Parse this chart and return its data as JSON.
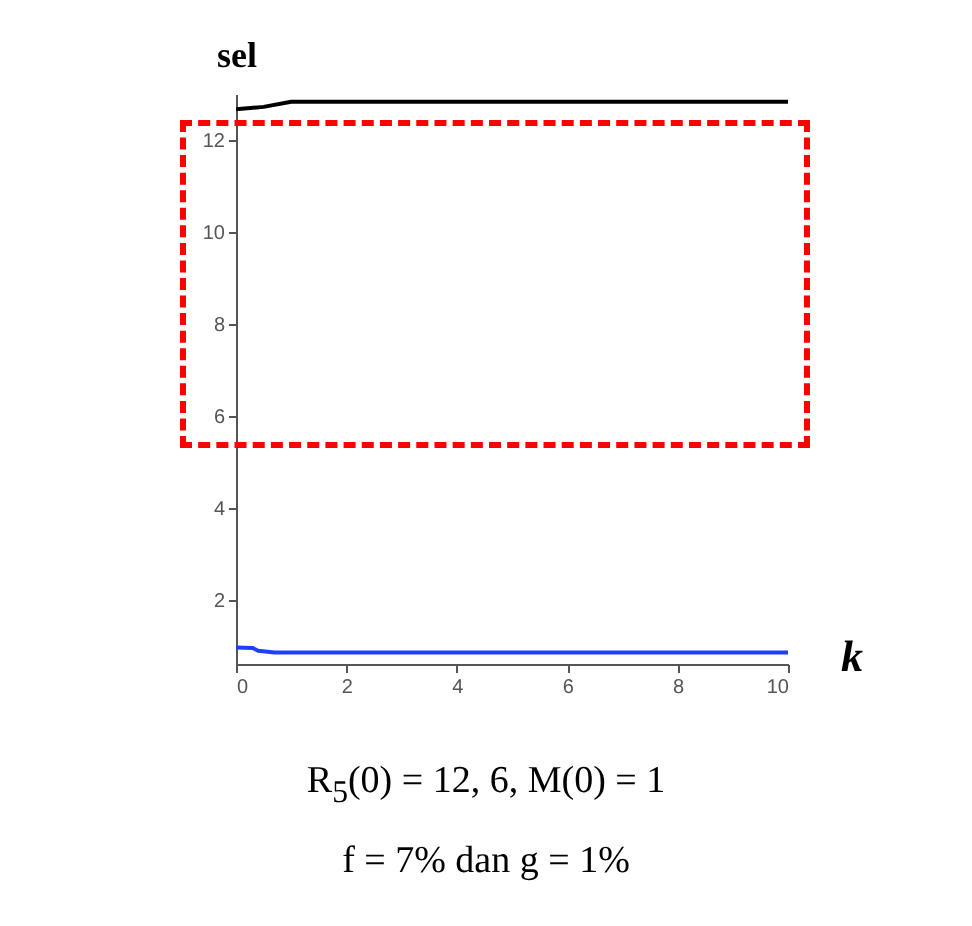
{
  "chart_data": {
    "type": "line",
    "xlabel": "k",
    "ylabel": "sel",
    "series": [
      {
        "color": "#000000",
        "x": [
          0,
          0.5,
          1,
          10
        ],
        "values": [
          12.67,
          12.72,
          12.83,
          12.83
        ]
      },
      {
        "color": "#1f3fff",
        "x": [
          0,
          0.3,
          0.4,
          0.7,
          10
        ],
        "values": [
          0.96,
          0.95,
          0.89,
          0.85,
          0.85
        ]
      }
    ],
    "xlim": [
      0,
      10
    ],
    "xticks": [
      0,
      2,
      4,
      6,
      8,
      10
    ],
    "ylim": [
      0.6,
      13
    ],
    "yticks": [
      2,
      4,
      6,
      8,
      10,
      12
    ],
    "grid": false,
    "legend": false,
    "marker": "none",
    "line_style": "solid",
    "annotations": [
      "R$_{5}$(0) = 12, 6, M(0) = 1",
      "f = 7% dan g = 1%"
    ]
  }
}
